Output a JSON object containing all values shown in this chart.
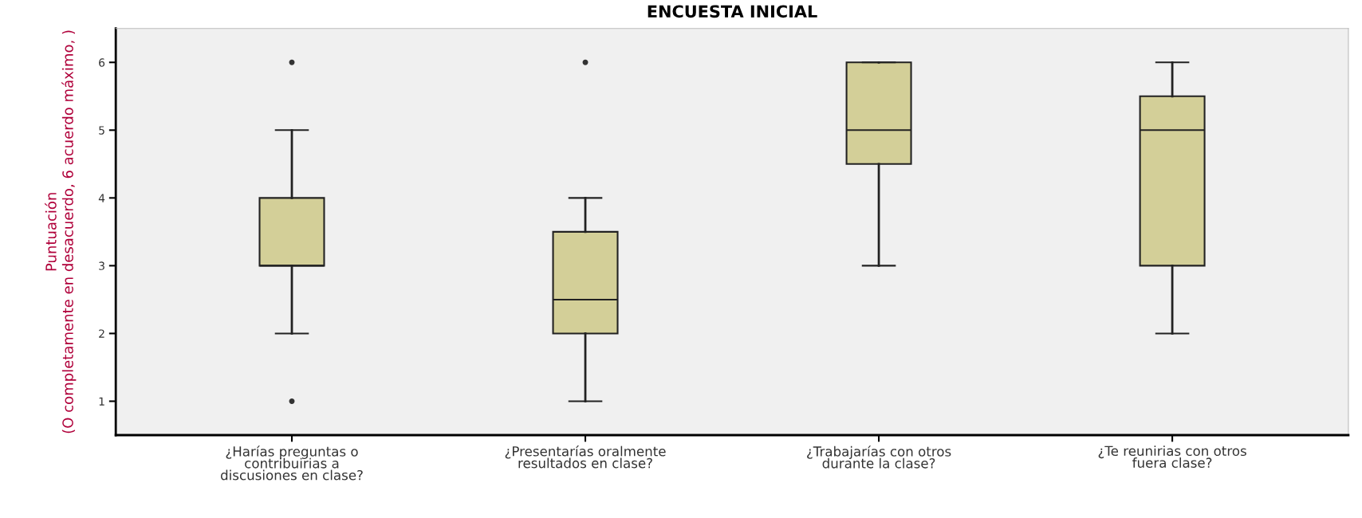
{
  "chart_data": {
    "type": "box",
    "title": "ENCUESTA INICIAL",
    "ylabel": "Puntuación\n(O completamente en desacuerdo, 6 acuerdo máximo, )",
    "categories": [
      "¿Harías preguntas o\ncontribuirias a\ndiscusiones en clase?",
      "¿Presentarías oralmente\nresultados en clase?",
      "¿Trabajarías con otros\ndurante la clase?",
      "¿Te reunirias con otros\nfuera clase?"
    ],
    "color": "#d3cf98",
    "boxes": [
      {
        "low": 2,
        "q1": 3,
        "median": 3,
        "q3": 4,
        "high": 5,
        "outliers": [
          6,
          1
        ]
      },
      {
        "low": 1,
        "q1": 2,
        "median": 2.5,
        "q3": 3.5,
        "high": 4,
        "outliers": [
          6
        ]
      },
      {
        "low": 3,
        "q1": 4.5,
        "median": 5,
        "q3": 6,
        "high": 6
      },
      {
        "low": 2,
        "q1": 3,
        "median": 5,
        "q3": 5.5,
        "high": 6
      }
    ],
    "ylim": [
      0.5,
      6.5
    ],
    "yticks": [
      1,
      2,
      3,
      4,
      5,
      6
    ],
    "grid": false
  }
}
